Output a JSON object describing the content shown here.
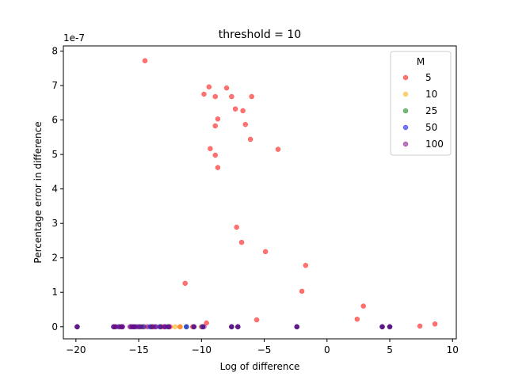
{
  "chart_data": {
    "type": "scatter",
    "title": "threshold = 10",
    "xlabel": "Log of difference",
    "ylabel": "Percentage error in difference",
    "y_offset_label": "1e-7",
    "xlim": [
      -21,
      10.3
    ],
    "ylim": [
      -0.35,
      8.15
    ],
    "x_ticks": [
      -20,
      -15,
      -10,
      -5,
      0,
      5,
      10
    ],
    "x_tick_labels": [
      "−20",
      "−15",
      "−10",
      "−5",
      "0",
      "5",
      "10"
    ],
    "y_ticks": [
      0,
      1,
      2,
      3,
      4,
      5,
      6,
      7,
      8
    ],
    "y_tick_labels": [
      "0",
      "1",
      "2",
      "3",
      "4",
      "5",
      "6",
      "7",
      "8"
    ],
    "grid": false,
    "legend": {
      "title": "M",
      "placement": "upper right"
    },
    "series": [
      {
        "name": "5",
        "color": "#ff0000",
        "points": [
          [
            -14.5,
            7.72
          ],
          [
            -9.4,
            6.96
          ],
          [
            -9.8,
            6.75
          ],
          [
            -8.9,
            6.68
          ],
          [
            -8.0,
            6.93
          ],
          [
            -7.6,
            6.68
          ],
          [
            -6.0,
            6.68
          ],
          [
            -7.3,
            6.32
          ],
          [
            -6.7,
            6.27
          ],
          [
            -8.7,
            6.03
          ],
          [
            -8.9,
            5.83
          ],
          [
            -6.5,
            5.87
          ],
          [
            -6.1,
            5.44
          ],
          [
            -9.3,
            5.17
          ],
          [
            -3.9,
            5.15
          ],
          [
            -8.9,
            4.98
          ],
          [
            -8.7,
            4.62
          ],
          [
            -7.2,
            2.89
          ],
          [
            -6.8,
            2.45
          ],
          [
            -4.9,
            2.18
          ],
          [
            -1.7,
            1.78
          ],
          [
            -11.3,
            1.26
          ],
          [
            -2.0,
            1.03
          ],
          [
            2.9,
            0.6
          ],
          [
            2.4,
            0.22
          ],
          [
            -5.6,
            0.2
          ],
          [
            -9.6,
            0.11
          ],
          [
            8.6,
            0.08
          ],
          [
            7.4,
            0.02
          ],
          [
            -19.9,
            0.0
          ],
          [
            -16.9,
            0.0
          ],
          [
            -16.3,
            0.0
          ],
          [
            -15.4,
            0.0
          ],
          [
            -14.7,
            0.0
          ],
          [
            -13.9,
            0.0
          ],
          [
            -13.0,
            0.0
          ],
          [
            -12.5,
            0.0
          ],
          [
            -11.7,
            0.0
          ],
          [
            -10.7,
            0.0
          ],
          [
            -10.0,
            0.0
          ],
          [
            -7.6,
            0.0
          ],
          [
            -7.1,
            0.0
          ],
          [
            -2.4,
            0.0
          ],
          [
            4.4,
            0.0
          ],
          [
            5.0,
            0.0
          ]
        ]
      },
      {
        "name": "10",
        "color": "#ffa500",
        "points": [
          [
            -19.9,
            0.0
          ],
          [
            -16.9,
            0.0
          ],
          [
            -16.4,
            0.0
          ],
          [
            -15.6,
            0.0
          ],
          [
            -15.1,
            0.0
          ],
          [
            -14.5,
            0.0
          ],
          [
            -13.8,
            0.0
          ],
          [
            -13.2,
            0.0
          ],
          [
            -12.6,
            0.0
          ],
          [
            -12.1,
            0.0
          ],
          [
            -11.7,
            0.0
          ],
          [
            -10.6,
            0.0
          ],
          [
            -9.9,
            0.0
          ],
          [
            -7.6,
            0.0
          ],
          [
            -7.1,
            0.0
          ],
          [
            -2.4,
            0.0
          ],
          [
            4.4,
            0.0
          ],
          [
            5.0,
            0.0
          ]
        ]
      },
      {
        "name": "25",
        "color": "#008000",
        "points": [
          [
            -19.9,
            0.0
          ],
          [
            -16.9,
            0.0
          ],
          [
            -16.4,
            0.0
          ],
          [
            -15.4,
            0.0
          ],
          [
            -14.8,
            0.0
          ],
          [
            -14.0,
            0.0
          ],
          [
            -13.3,
            0.0
          ],
          [
            -12.7,
            0.0
          ],
          [
            -11.2,
            0.0
          ],
          [
            -10.6,
            0.0
          ],
          [
            -9.9,
            0.0
          ],
          [
            -7.6,
            0.0
          ],
          [
            -7.1,
            0.0
          ],
          [
            -2.4,
            0.0
          ],
          [
            4.4,
            0.0
          ],
          [
            5.0,
            0.0
          ]
        ]
      },
      {
        "name": "50",
        "color": "#0000ff",
        "points": [
          [
            -19.9,
            0.0
          ],
          [
            -17.0,
            0.0
          ],
          [
            -16.6,
            0.0
          ],
          [
            -16.3,
            0.0
          ],
          [
            -15.6,
            0.0
          ],
          [
            -15.3,
            0.0
          ],
          [
            -15.0,
            0.0
          ],
          [
            -14.6,
            0.0
          ],
          [
            -14.1,
            0.0
          ],
          [
            -13.7,
            0.0
          ],
          [
            -13.3,
            0.0
          ],
          [
            -12.9,
            0.0
          ],
          [
            -12.6,
            0.0
          ],
          [
            -11.2,
            0.0
          ],
          [
            -10.6,
            0.0
          ],
          [
            -9.9,
            0.0
          ],
          [
            -7.6,
            0.0
          ],
          [
            -7.1,
            0.0
          ],
          [
            -2.4,
            0.0
          ],
          [
            4.4,
            0.0
          ],
          [
            5.0,
            0.0
          ]
        ]
      },
      {
        "name": "100",
        "color": "#800080",
        "points": [
          [
            -19.9,
            0.0
          ],
          [
            -17.0,
            0.0
          ],
          [
            -16.8,
            0.0
          ],
          [
            -16.5,
            0.0
          ],
          [
            -16.3,
            0.0
          ],
          [
            -15.7,
            0.0
          ],
          [
            -15.5,
            0.0
          ],
          [
            -15.2,
            0.0
          ],
          [
            -14.9,
            0.0
          ],
          [
            -14.3,
            0.0
          ],
          [
            -13.9,
            0.0
          ],
          [
            -13.6,
            0.0
          ],
          [
            -13.2,
            0.0
          ],
          [
            -12.9,
            0.0
          ],
          [
            -12.6,
            0.0
          ],
          [
            -10.6,
            0.0
          ],
          [
            -9.8,
            0.0
          ],
          [
            -7.6,
            0.0
          ],
          [
            -7.1,
            0.0
          ],
          [
            -2.4,
            0.0
          ],
          [
            4.4,
            0.0
          ],
          [
            5.0,
            0.0
          ]
        ]
      }
    ]
  }
}
